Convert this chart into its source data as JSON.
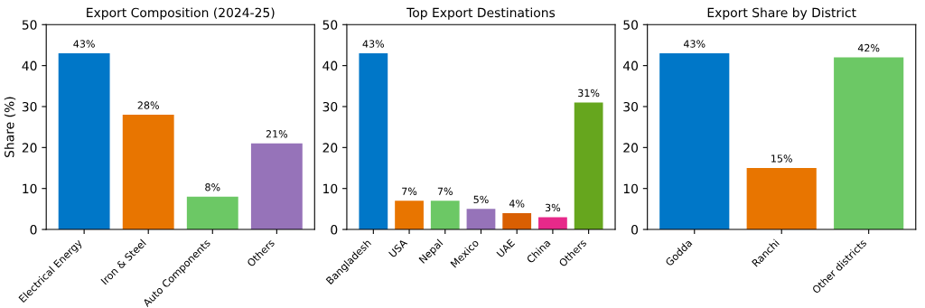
{
  "chart_data": [
    {
      "type": "bar",
      "title": "Export Composition (2024-25)",
      "ylabel": "Share (%)",
      "categories": [
        "Electrical Energy",
        "Iron & Steel",
        "Auto Components",
        "Others"
      ],
      "values": [
        43,
        28,
        8,
        21
      ],
      "colors": [
        "#0077c8",
        "#e87500",
        "#6cc865",
        "#9673b9"
      ],
      "value_labels": [
        "43%",
        "28%",
        "8%",
        "21%"
      ],
      "ylim": [
        0,
        50
      ],
      "yticks": [
        0,
        10,
        20,
        30,
        40,
        50
      ],
      "grid": false,
      "legend": false
    },
    {
      "type": "bar",
      "title": "Top Export Destinations",
      "categories": [
        "Bangladesh",
        "USA",
        "Nepal",
        "Mexico",
        "UAE",
        "China",
        "Others"
      ],
      "values": [
        43,
        7,
        7,
        5,
        4,
        3,
        31
      ],
      "colors": [
        "#0077c8",
        "#e87500",
        "#6cc865",
        "#9673b9",
        "#d95f02",
        "#e7298a",
        "#66a61e"
      ],
      "value_labels": [
        "43%",
        "7%",
        "7%",
        "5%",
        "4%",
        "3%",
        "31%"
      ],
      "ylim": [
        0,
        50
      ],
      "yticks": [
        0,
        10,
        20,
        30,
        40,
        50
      ],
      "grid": false,
      "legend": false
    },
    {
      "type": "bar",
      "title": "Export Share by District",
      "categories": [
        "Godda",
        "Ranchi",
        "Other districts"
      ],
      "values": [
        43,
        15,
        42
      ],
      "colors": [
        "#0077c8",
        "#e87500",
        "#6cc865"
      ],
      "value_labels": [
        "43%",
        "15%",
        "42%"
      ],
      "ylim": [
        0,
        50
      ],
      "yticks": [
        0,
        10,
        20,
        30,
        40,
        50
      ],
      "grid": false,
      "legend": false
    }
  ]
}
